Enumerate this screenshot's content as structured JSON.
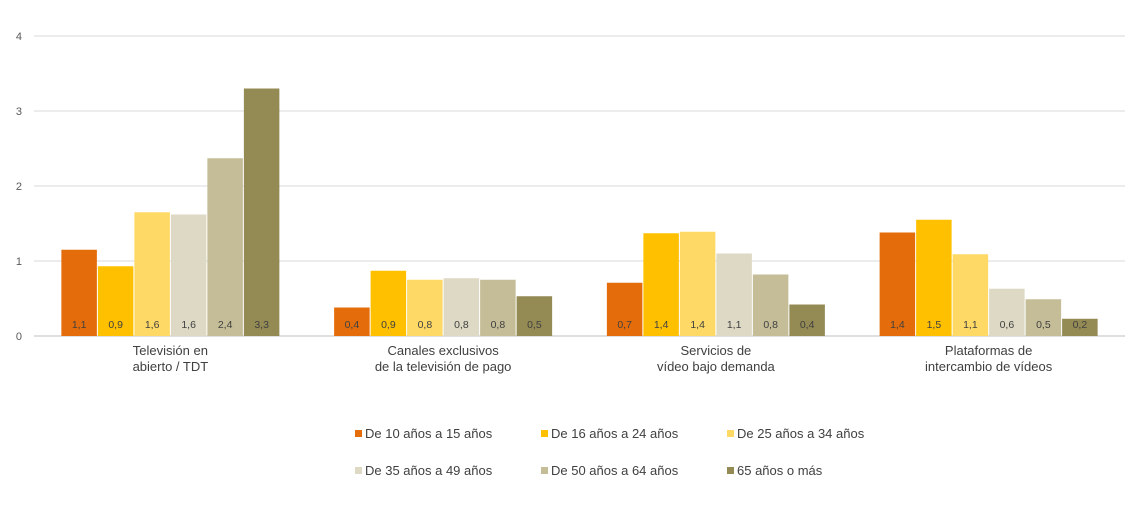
{
  "chart_data": {
    "type": "bar",
    "categories": [
      [
        "Televisión en",
        "abierto / TDT"
      ],
      [
        "Canales exclusivos",
        "de la televisión de pago"
      ],
      [
        "Servicios de",
        "vídeo bajo demanda"
      ],
      [
        "Plataformas de",
        "intercambio de vídeos"
      ]
    ],
    "ylim": [
      0,
      4
    ],
    "yticks": [
      "0",
      "1",
      "2",
      "3",
      "4"
    ],
    "grid": true,
    "legend_position": "bottom",
    "series": [
      {
        "name": "De 10 años a 15 años",
        "color": "#e46c0a",
        "values": [
          1.15,
          0.38,
          0.71,
          1.38
        ],
        "labels": [
          "1,1",
          "0,4",
          "0,7",
          "1,4"
        ]
      },
      {
        "name": "De 16 años a 24 años",
        "color": "#ffc000",
        "values": [
          0.93,
          0.87,
          1.37,
          1.55
        ],
        "labels": [
          "0,9",
          "0,9",
          "1,4",
          "1,5"
        ]
      },
      {
        "name": "De 25 años a 34 años",
        "color": "#ffd966",
        "values": [
          1.65,
          0.75,
          1.39,
          1.09
        ],
        "labels": [
          "1,6",
          "0,8",
          "1,4",
          "1,1"
        ]
      },
      {
        "name": "De 35 años a 49 años",
        "color": "#ddd9c4",
        "values": [
          1.62,
          0.77,
          1.1,
          0.63
        ],
        "labels": [
          "1,6",
          "0,8",
          "1,1",
          "0,6"
        ]
      },
      {
        "name": "De 50 años a 64 años",
        "color": "#c4bd97",
        "values": [
          2.37,
          0.75,
          0.82,
          0.49
        ],
        "labels": [
          "2,4",
          "0,8",
          "0,8",
          "0,5"
        ]
      },
      {
        "name": "65 años o más",
        "color": "#948a54",
        "values": [
          3.3,
          0.53,
          0.42,
          0.23
        ],
        "labels": [
          "3,3",
          "0,5",
          "0,4",
          "0,2"
        ]
      }
    ]
  }
}
